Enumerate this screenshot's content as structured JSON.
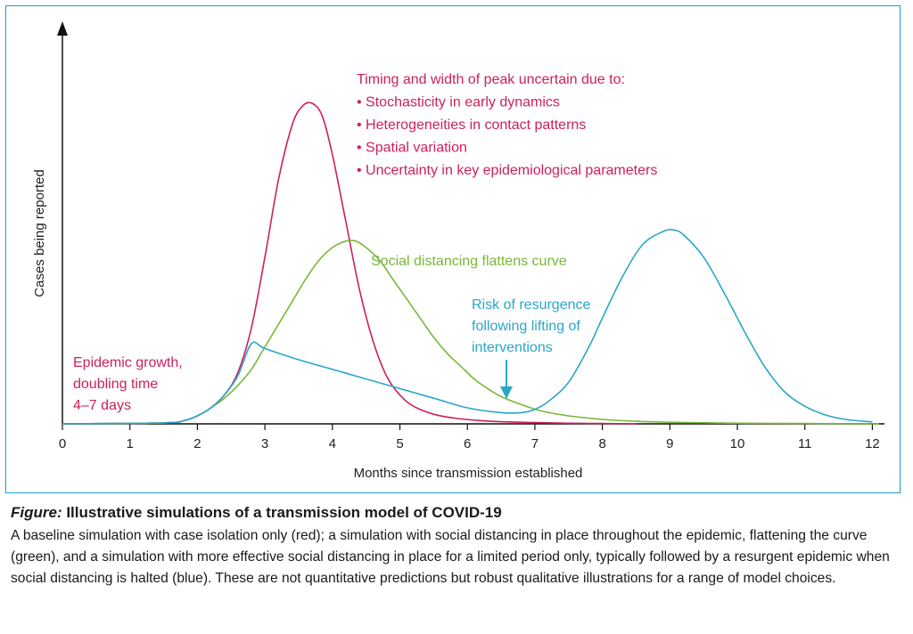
{
  "chart_data": {
    "type": "line",
    "xlabel": "Months since transmission established",
    "ylabel": "Cases being reported",
    "xlim": [
      0,
      12.1
    ],
    "ylim": [
      0,
      1.1
    ],
    "x_ticks": [
      0,
      1,
      2,
      3,
      4,
      5,
      6,
      7,
      8,
      9,
      10,
      11,
      12
    ],
    "grid": false,
    "series": [
      {
        "color": "#cc1f5e",
        "x": [
          0,
          1.5,
          1.8,
          2.0,
          2.2,
          2.4,
          2.6,
          2.8,
          3.0,
          3.2,
          3.4,
          3.55,
          3.7,
          3.85,
          4.0,
          4.2,
          4.4,
          4.6,
          4.8,
          5.0,
          5.2,
          5.5,
          5.8,
          6.2,
          6.6,
          7.0,
          7.5,
          8.0,
          8.5
        ],
        "y": [
          0,
          0.003,
          0.01,
          0.025,
          0.05,
          0.09,
          0.16,
          0.3,
          0.52,
          0.76,
          0.93,
          0.99,
          1.0,
          0.96,
          0.84,
          0.63,
          0.42,
          0.26,
          0.15,
          0.09,
          0.055,
          0.03,
          0.018,
          0.01,
          0.006,
          0.004,
          0.002,
          0.001,
          0.0
        ]
      },
      {
        "color": "#79b83a",
        "x": [
          0,
          1.5,
          1.8,
          2.0,
          2.2,
          2.4,
          2.6,
          2.8,
          3.0,
          3.2,
          3.4,
          3.6,
          3.8,
          4.0,
          4.2,
          4.35,
          4.5,
          4.7,
          4.9,
          5.1,
          5.3,
          5.5,
          5.7,
          5.9,
          6.1,
          6.3,
          6.5,
          6.8,
          7.1,
          7.5,
          8.0,
          8.5,
          9.0,
          10.0,
          11.0,
          12.1
        ],
        "y": [
          0,
          0.003,
          0.01,
          0.025,
          0.05,
          0.08,
          0.12,
          0.17,
          0.24,
          0.31,
          0.38,
          0.45,
          0.51,
          0.55,
          0.57,
          0.57,
          0.55,
          0.51,
          0.45,
          0.39,
          0.33,
          0.27,
          0.22,
          0.18,
          0.14,
          0.11,
          0.085,
          0.06,
          0.04,
          0.025,
          0.014,
          0.008,
          0.005,
          0.002,
          0.001,
          0.0
        ]
      },
      {
        "color": "#2aa6c9",
        "x": [
          0,
          1.5,
          1.8,
          2.0,
          2.2,
          2.4,
          2.6,
          2.8,
          3.0,
          3.5,
          4.0,
          4.5,
          5.0,
          5.5,
          6.0,
          6.5,
          6.8,
          7.0,
          7.2,
          7.5,
          7.8,
          8.0,
          8.3,
          8.6,
          8.9,
          9.05,
          9.2,
          9.5,
          9.8,
          10.1,
          10.4,
          10.7,
          11.0,
          11.3,
          11.6,
          12.0
        ],
        "y": [
          0,
          0.003,
          0.01,
          0.025,
          0.05,
          0.09,
          0.15,
          0.25,
          0.235,
          0.2,
          0.17,
          0.14,
          0.11,
          0.08,
          0.05,
          0.035,
          0.035,
          0.045,
          0.07,
          0.13,
          0.24,
          0.33,
          0.46,
          0.56,
          0.6,
          0.605,
          0.59,
          0.52,
          0.41,
          0.29,
          0.18,
          0.1,
          0.055,
          0.028,
          0.014,
          0.006
        ]
      }
    ],
    "annotations": [
      {
        "id": "peak-uncertainty",
        "color": "#cc1f5e",
        "lines": [
          "Timing and width of peak uncertain due to:",
          "• Stochasticity in early dynamics",
          "• Heterogeneities in contact patterns",
          "• Spatial variation",
          "• Uncertainty in key epidemiological parameters"
        ]
      },
      {
        "id": "social-distancing",
        "color": "#79b83a",
        "lines": [
          "Social distancing flattens curve"
        ]
      },
      {
        "id": "resurgence",
        "color": "#2aa6c9",
        "lines": [
          "Risk of resurgence",
          "following lifting of",
          "interventions"
        ]
      },
      {
        "id": "epidemic-growth",
        "color": "#cc1f5e",
        "lines": [
          "Epidemic growth,",
          "doubling time",
          "4–7 days"
        ]
      }
    ]
  },
  "caption": {
    "label": "Figure:",
    "title": " Illustrative simulations of a transmission model of COVID-19",
    "body": "A baseline simulation with case isolation only (red); a simulation with social distancing in place throughout the epidemic, flattening the curve (green), and a simulation with more effective social distancing in place for a limited period only, typically followed by a resurgent epidemic when social distancing is halted (blue). These are not quantitative predictions but robust qualitative illustrations for a range of model choices."
  },
  "colors": {
    "frame": "#1f9bd4",
    "axis": "#111111"
  }
}
